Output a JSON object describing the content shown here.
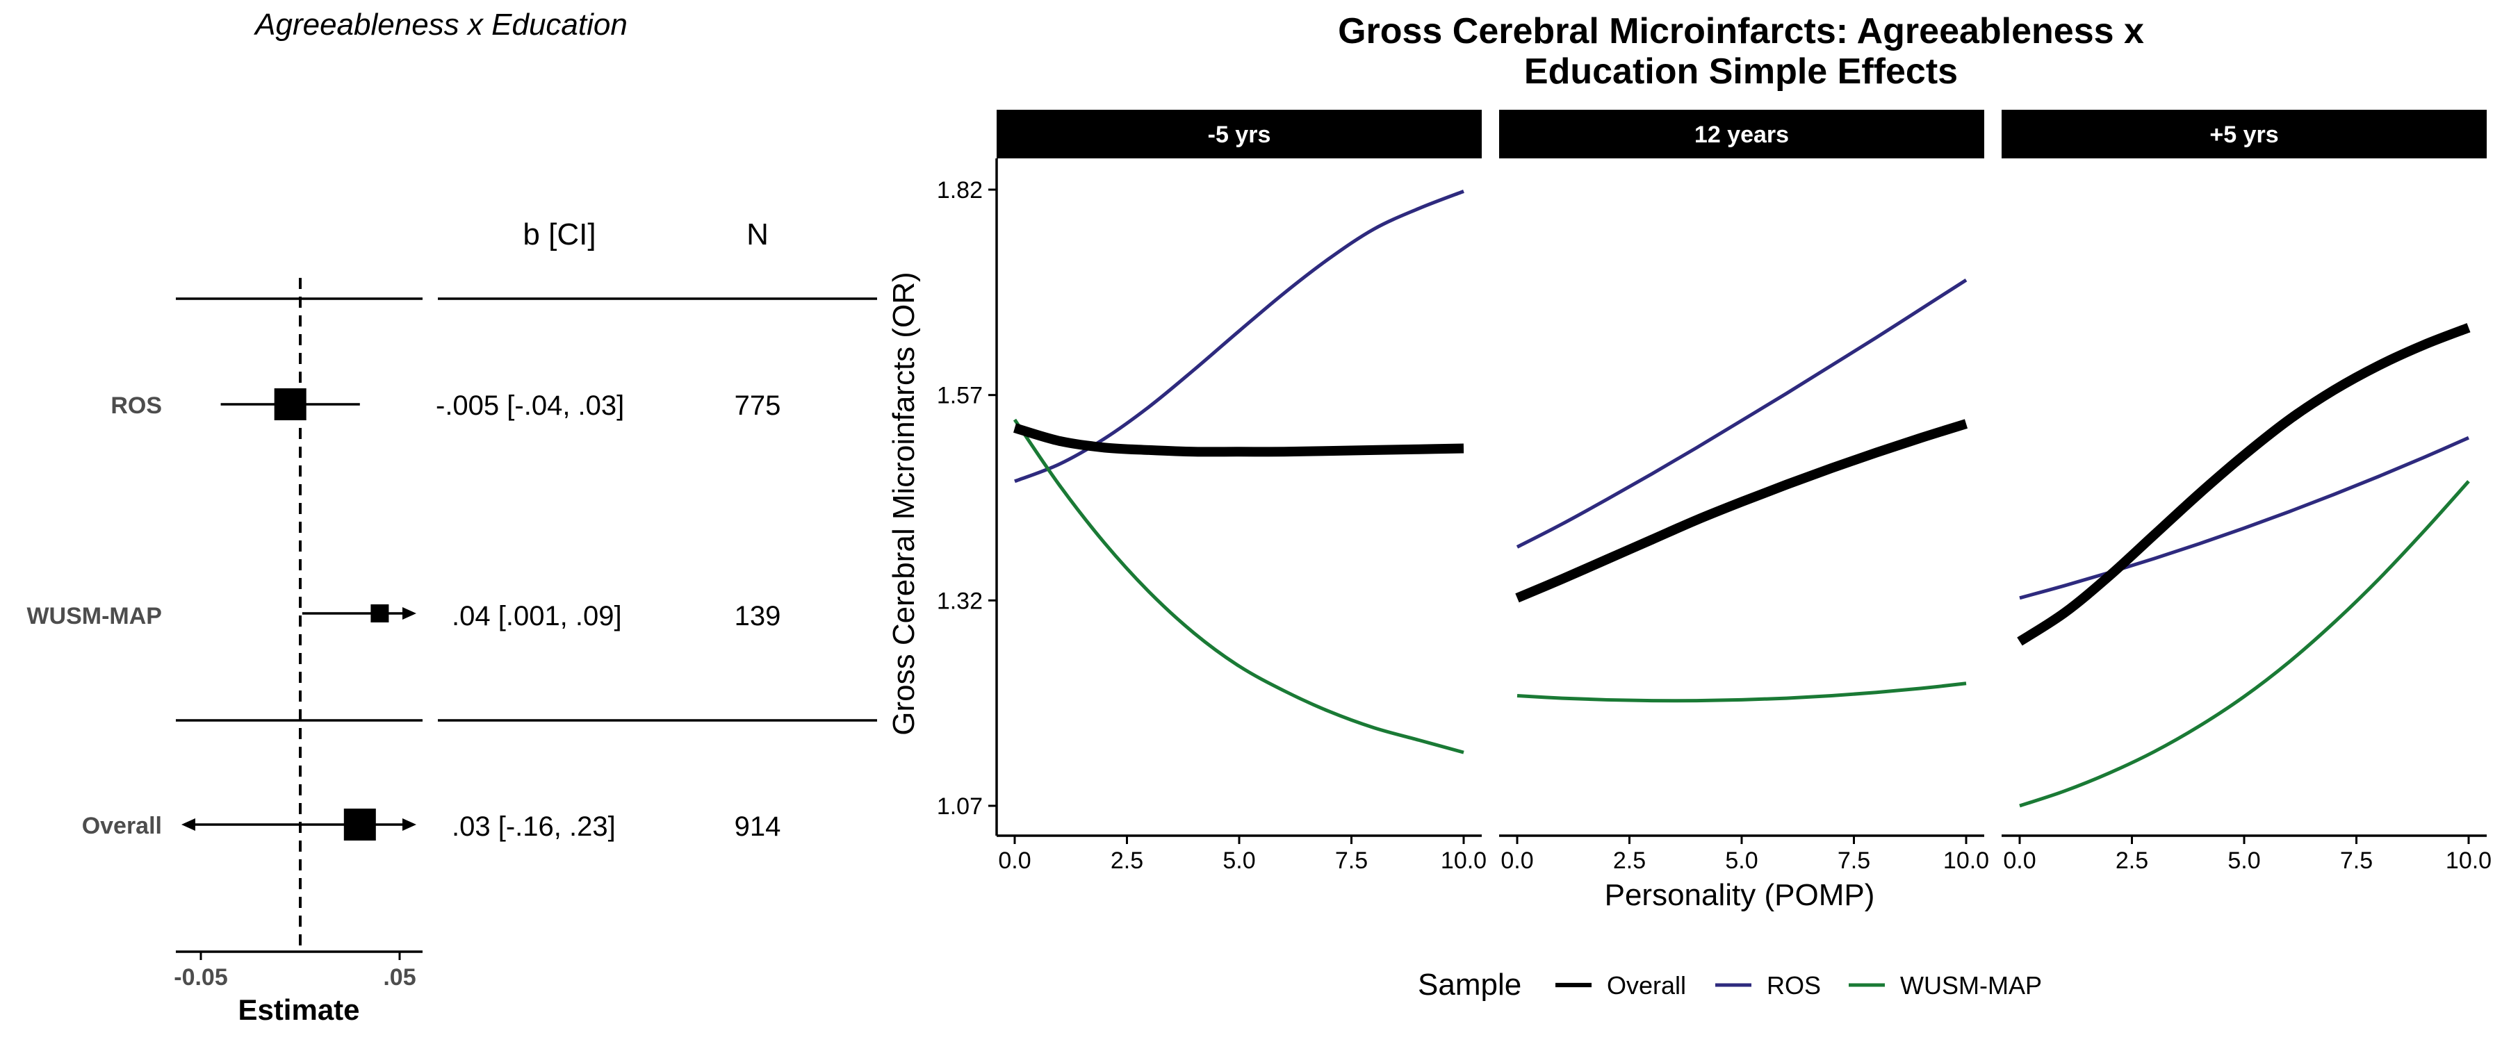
{
  "forest": {
    "title": "Agreeableness x Education",
    "col_b_header": "b [CI]",
    "col_n_header": "N",
    "xlabel": "Estimate",
    "xticks": [
      "-0.05",
      ".05"
    ],
    "rows": [
      {
        "label": "ROS",
        "b_ci": "-.005 [-.04, .03]",
        "n": "775",
        "estimate": -0.005,
        "lower": -0.04,
        "upper": 0.03,
        "group": "sample"
      },
      {
        "label": "WUSM-MAP",
        "b_ci": ".04 [.001, .09]",
        "n": "139",
        "estimate": 0.04,
        "lower": 0.001,
        "upper": 0.09,
        "group": "sample"
      },
      {
        "label": "Overall",
        "b_ci": ".03 [-.16, .23]",
        "n": "914",
        "estimate": 0.03,
        "lower": -0.16,
        "upper": 0.23,
        "group": "overall"
      }
    ]
  },
  "chart_data": {
    "type": "line",
    "title": "Gross Cerebral Microinfarcts: Agreeableness x Education Simple Effects",
    "title_lines": [
      "Gross Cerebral Microinfarcts: Agreeableness x",
      "Education Simple Effects"
    ],
    "xlabel": "Personality (POMP)",
    "ylabel": "Gross Cerebral Microinfarcts (OR)",
    "xlim": [
      0,
      10
    ],
    "ylim": [
      1.07,
      1.82
    ],
    "x_ticks": [
      "0.0",
      "2.5",
      "5.0",
      "7.5",
      "10.0"
    ],
    "y_ticks": [
      "1.07",
      "1.32",
      "1.57",
      "1.82"
    ],
    "legend_title": "Sample",
    "legend_position": "bottom",
    "series_styles": [
      {
        "name": "Overall",
        "color": "#000000",
        "width": 14
      },
      {
        "name": "ROS",
        "color": "#2e2a7e",
        "width": 5
      },
      {
        "name": "WUSM-MAP",
        "color": "#1a7a35",
        "width": 5
      }
    ],
    "x": [
      0,
      1,
      2,
      3,
      4,
      5,
      6,
      7,
      8,
      9,
      10
    ],
    "panels": [
      {
        "label": "-5 yrs",
        "series": [
          {
            "name": "Overall",
            "values": [
              1.53,
              1.514,
              1.506,
              1.503,
              1.501,
              1.501,
              1.501,
              1.502,
              1.503,
              1.504,
              1.505
            ]
          },
          {
            "name": "ROS",
            "values": [
              1.465,
              1.486,
              1.517,
              1.556,
              1.601,
              1.648,
              1.694,
              1.736,
              1.772,
              1.797,
              1.818
            ]
          },
          {
            "name": "WUSM-MAP",
            "values": [
              1.54,
              1.46,
              1.39,
              1.33,
              1.28,
              1.24,
              1.21,
              1.185,
              1.165,
              1.15,
              1.135
            ]
          }
        ]
      },
      {
        "label": "12 years",
        "series": [
          {
            "name": "Overall",
            "values": [
              1.323,
              1.346,
              1.37,
              1.394,
              1.418,
              1.44,
              1.461,
              1.481,
              1.5,
              1.518,
              1.535
            ]
          },
          {
            "name": "ROS",
            "values": [
              1.385,
              1.413,
              1.443,
              1.474,
              1.506,
              1.539,
              1.572,
              1.606,
              1.64,
              1.675,
              1.71
            ]
          },
          {
            "name": "WUSM-MAP",
            "values": [
              1.204,
              1.201,
              1.199,
              1.198,
              1.198,
              1.199,
              1.201,
              1.204,
              1.208,
              1.213,
              1.219
            ]
          }
        ]
      },
      {
        "label": "+5 yrs",
        "series": [
          {
            "name": "Overall",
            "values": [
              1.27,
              1.305,
              1.35,
              1.4,
              1.45,
              1.497,
              1.54,
              1.576,
              1.606,
              1.631,
              1.652
            ]
          },
          {
            "name": "ROS",
            "values": [
              1.323,
              1.338,
              1.354,
              1.371,
              1.389,
              1.408,
              1.428,
              1.449,
              1.471,
              1.494,
              1.518
            ]
          },
          {
            "name": "WUSM-MAP",
            "values": [
              1.07,
              1.088,
              1.11,
              1.136,
              1.167,
              1.203,
              1.245,
              1.293,
              1.346,
              1.404,
              1.465
            ]
          }
        ]
      }
    ]
  }
}
